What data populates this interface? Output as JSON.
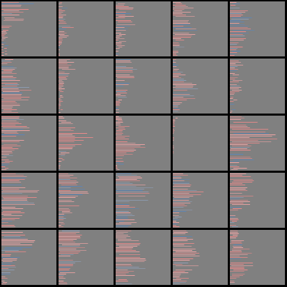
{
  "grid": {
    "rows": 5,
    "cols": 5,
    "background_color": "#000000",
    "tile_color": "#808080",
    "stripe_colors": [
      "#ef8a8a",
      "#f4a5a5",
      "#5b86b8",
      "#8f9fb8"
    ]
  },
  "tiles": [
    {
      "row": 0,
      "col": 0,
      "profile": [
        0.45,
        0.5,
        0.35,
        0.3,
        0.25,
        0.2,
        0.12,
        0.08,
        0.05,
        0.04
      ],
      "blue_fraction": 0.15
    },
    {
      "row": 0,
      "col": 1,
      "profile": [
        0.05,
        0.08,
        0.1,
        0.12,
        0.15,
        0.2,
        0.15,
        0.08,
        0.04,
        0.02
      ],
      "blue_fraction": 0.05
    },
    {
      "row": 0,
      "col": 2,
      "profile": [
        0.2,
        0.25,
        0.3,
        0.25,
        0.3,
        0.22,
        0.15,
        0.1,
        0.12,
        0.05
      ],
      "blue_fraction": 0.1
    },
    {
      "row": 0,
      "col": 3,
      "profile": [
        0.15,
        0.3,
        0.25,
        0.3,
        0.25,
        0.35,
        0.3,
        0.2,
        0.15,
        0.1
      ],
      "blue_fraction": 0.1
    },
    {
      "row": 0,
      "col": 4,
      "profile": [
        0.12,
        0.2,
        0.3,
        0.28,
        0.25,
        0.3,
        0.35,
        0.3,
        0.2,
        0.15
      ],
      "blue_fraction": 0.3
    },
    {
      "row": 1,
      "col": 0,
      "profile": [
        0.15,
        0.2,
        0.25,
        0.3,
        0.35,
        0.4,
        0.45,
        0.5,
        0.4,
        0.3
      ],
      "blue_fraction": 0.2
    },
    {
      "row": 1,
      "col": 1,
      "profile": [
        0.2,
        0.25,
        0.2,
        0.15,
        0.12,
        0.1,
        0.08,
        0.06,
        0.05,
        0.03
      ],
      "blue_fraction": 0.03
    },
    {
      "row": 1,
      "col": 2,
      "profile": [
        0.25,
        0.3,
        0.35,
        0.3,
        0.28,
        0.25,
        0.2,
        0.15,
        0.1,
        0.05
      ],
      "blue_fraction": 0.25
    },
    {
      "row": 1,
      "col": 3,
      "profile": [
        0.05,
        0.08,
        0.1,
        0.2,
        0.3,
        0.35,
        0.4,
        0.35,
        0.2,
        0.1
      ],
      "blue_fraction": 0.35
    },
    {
      "row": 1,
      "col": 4,
      "profile": [
        0.15,
        0.2,
        0.12,
        0.1,
        0.15,
        0.2,
        0.15,
        0.1,
        0.08,
        0.05
      ],
      "blue_fraction": 0.1
    },
    {
      "row": 2,
      "col": 0,
      "profile": [
        0.25,
        0.35,
        0.4,
        0.45,
        0.35,
        0.3,
        0.25,
        0.2,
        0.15,
        0.1
      ],
      "blue_fraction": 0.2
    },
    {
      "row": 2,
      "col": 1,
      "profile": [
        0.15,
        0.2,
        0.3,
        0.4,
        0.5,
        0.35,
        0.2,
        0.1,
        0.05,
        0.03
      ],
      "blue_fraction": 0.15
    },
    {
      "row": 2,
      "col": 2,
      "profile": [
        0.1,
        0.15,
        0.2,
        0.15,
        0.25,
        0.4,
        0.45,
        0.3,
        0.15,
        0.05
      ],
      "blue_fraction": 0.05
    },
    {
      "row": 2,
      "col": 3,
      "profile": [
        0.05,
        0.04,
        0.03,
        0.03,
        0.02,
        0.02,
        0.02,
        0.01,
        0.01,
        0.01
      ],
      "blue_fraction": 0.0
    },
    {
      "row": 2,
      "col": 4,
      "profile": [
        0.3,
        0.45,
        0.55,
        0.65,
        0.7,
        0.6,
        0.5,
        0.4,
        0.3,
        0.2
      ],
      "blue_fraction": 0.1
    },
    {
      "row": 3,
      "col": 0,
      "profile": [
        0.35,
        0.45,
        0.5,
        0.55,
        0.6,
        0.55,
        0.45,
        0.35,
        0.3,
        0.2
      ],
      "blue_fraction": 0.35
    },
    {
      "row": 3,
      "col": 1,
      "profile": [
        0.2,
        0.3,
        0.35,
        0.4,
        0.45,
        0.4,
        0.3,
        0.2,
        0.12,
        0.08
      ],
      "blue_fraction": 0.15
    },
    {
      "row": 3,
      "col": 2,
      "profile": [
        0.3,
        0.4,
        0.5,
        0.55,
        0.6,
        0.5,
        0.4,
        0.35,
        0.3,
        0.25
      ],
      "blue_fraction": 0.4
    },
    {
      "row": 3,
      "col": 3,
      "profile": [
        0.2,
        0.3,
        0.35,
        0.45,
        0.5,
        0.45,
        0.35,
        0.25,
        0.15,
        0.1
      ],
      "blue_fraction": 0.3
    },
    {
      "row": 3,
      "col": 4,
      "profile": [
        0.3,
        0.4,
        0.45,
        0.4,
        0.35,
        0.3,
        0.25,
        0.2,
        0.15,
        0.1
      ],
      "blue_fraction": 0.15
    },
    {
      "row": 4,
      "col": 0,
      "profile": [
        0.3,
        0.4,
        0.5,
        0.45,
        0.35,
        0.3,
        0.25,
        0.2,
        0.15,
        0.1
      ],
      "blue_fraction": 0.3
    },
    {
      "row": 4,
      "col": 1,
      "profile": [
        0.3,
        0.35,
        0.4,
        0.45,
        0.4,
        0.35,
        0.3,
        0.25,
        0.2,
        0.15
      ],
      "blue_fraction": 0.1
    },
    {
      "row": 4,
      "col": 2,
      "profile": [
        0.25,
        0.3,
        0.35,
        0.4,
        0.45,
        0.5,
        0.45,
        0.4,
        0.35,
        0.3
      ],
      "blue_fraction": 0.1
    },
    {
      "row": 4,
      "col": 3,
      "profile": [
        0.2,
        0.3,
        0.35,
        0.4,
        0.45,
        0.4,
        0.35,
        0.3,
        0.25,
        0.2
      ],
      "blue_fraction": 0.2
    },
    {
      "row": 4,
      "col": 4,
      "profile": [
        0.1,
        0.15,
        0.2,
        0.25,
        0.3,
        0.35,
        0.4,
        0.3,
        0.2,
        0.1
      ],
      "blue_fraction": 0.1
    }
  ]
}
